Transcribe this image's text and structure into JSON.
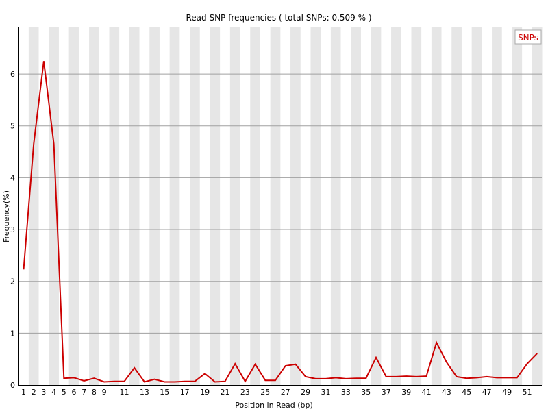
{
  "chart_data": {
    "type": "line",
    "title": "Read SNP frequencies ( total SNPs: 0.509 % )",
    "xlabel": "Position in Read (bp)",
    "ylabel": "Frequency(%)",
    "xlim": [
      1,
      52
    ],
    "ylim": [
      0,
      6.9
    ],
    "yticks": [
      0,
      1,
      2,
      3,
      4,
      5,
      6
    ],
    "xtick_labels": [
      "1",
      "2",
      "3",
      "4",
      "5",
      "6",
      "7",
      "8",
      "9",
      "11",
      "13",
      "15",
      "17",
      "19",
      "21",
      "23",
      "25",
      "27",
      "29",
      "31",
      "33",
      "35",
      "37",
      "39",
      "41",
      "43",
      "45",
      "47",
      "49",
      "51"
    ],
    "x": [
      1,
      2,
      3,
      4,
      5,
      6,
      7,
      8,
      9,
      10,
      11,
      12,
      13,
      14,
      15,
      16,
      17,
      18,
      19,
      20,
      21,
      22,
      23,
      24,
      25,
      26,
      27,
      28,
      29,
      30,
      31,
      32,
      33,
      34,
      35,
      36,
      37,
      38,
      39,
      40,
      41,
      42,
      43,
      44,
      45,
      46,
      47,
      48,
      49,
      50,
      51,
      52
    ],
    "series": [
      {
        "name": "SNPs",
        "color": "#cc0000",
        "values": [
          2.23,
          4.65,
          6.25,
          4.65,
          0.13,
          0.14,
          0.08,
          0.13,
          0.06,
          0.07,
          0.07,
          0.33,
          0.06,
          0.11,
          0.06,
          0.06,
          0.07,
          0.07,
          0.22,
          0.06,
          0.07,
          0.41,
          0.07,
          0.4,
          0.09,
          0.09,
          0.37,
          0.4,
          0.16,
          0.12,
          0.12,
          0.14,
          0.12,
          0.13,
          0.13,
          0.53,
          0.16,
          0.16,
          0.17,
          0.16,
          0.17,
          0.82,
          0.44,
          0.16,
          0.13,
          0.14,
          0.16,
          0.14,
          0.14,
          0.14,
          0.41,
          0.61
        ]
      }
    ],
    "legend": {
      "position": "top-right",
      "entries": [
        "SNPs"
      ]
    },
    "grid": true
  }
}
